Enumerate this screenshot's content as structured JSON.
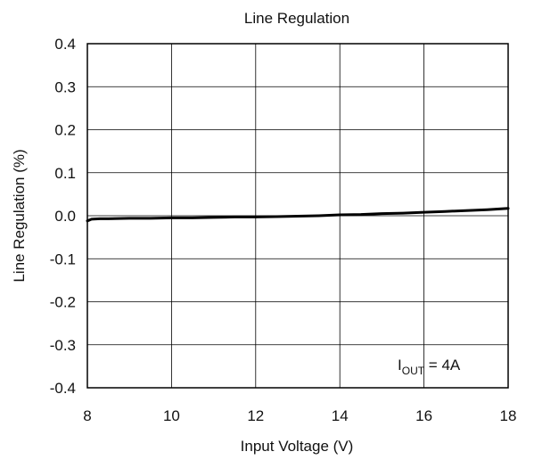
{
  "chart_data": {
    "type": "line",
    "title": "Line Regulation",
    "xlabel": "Input Voltage (V)",
    "ylabel": "Line Regulation (%)",
    "xlim": [
      8,
      18
    ],
    "ylim": [
      -0.4,
      0.4
    ],
    "x_ticks": [
      8,
      10,
      12,
      14,
      16,
      18
    ],
    "y_ticks": [
      0.4,
      0.3,
      0.2,
      0.1,
      0.0,
      -0.1,
      -0.2,
      -0.3,
      -0.4
    ],
    "x_tick_labels": [
      "8",
      "10",
      "12",
      "14",
      "16",
      "18"
    ],
    "y_tick_labels": [
      "0.4",
      "0.3",
      "0.2",
      "0.1",
      "0.0",
      "-0.1",
      "-0.2",
      "-0.3",
      "-0.4"
    ],
    "grid": true,
    "annotation": {
      "prefix": "I",
      "subscript": "OUT",
      "suffix": " = 4A",
      "placement": "bottom-right"
    },
    "series": [
      {
        "color": "#000000",
        "x": [
          8.0,
          8.1,
          8.3,
          8.5,
          9.0,
          9.5,
          10.0,
          10.5,
          11.0,
          11.5,
          12.0,
          12.5,
          13.0,
          13.5,
          14.0,
          14.5,
          15.0,
          15.5,
          16.0,
          16.5,
          17.0,
          17.5,
          18.0
        ],
        "y": [
          -0.012,
          -0.008,
          -0.007,
          -0.007,
          -0.006,
          -0.006,
          -0.005,
          -0.005,
          -0.004,
          -0.003,
          -0.003,
          -0.002,
          -0.001,
          0.0,
          0.002,
          0.003,
          0.005,
          0.006,
          0.008,
          0.01,
          0.012,
          0.014,
          0.017
        ]
      }
    ]
  }
}
